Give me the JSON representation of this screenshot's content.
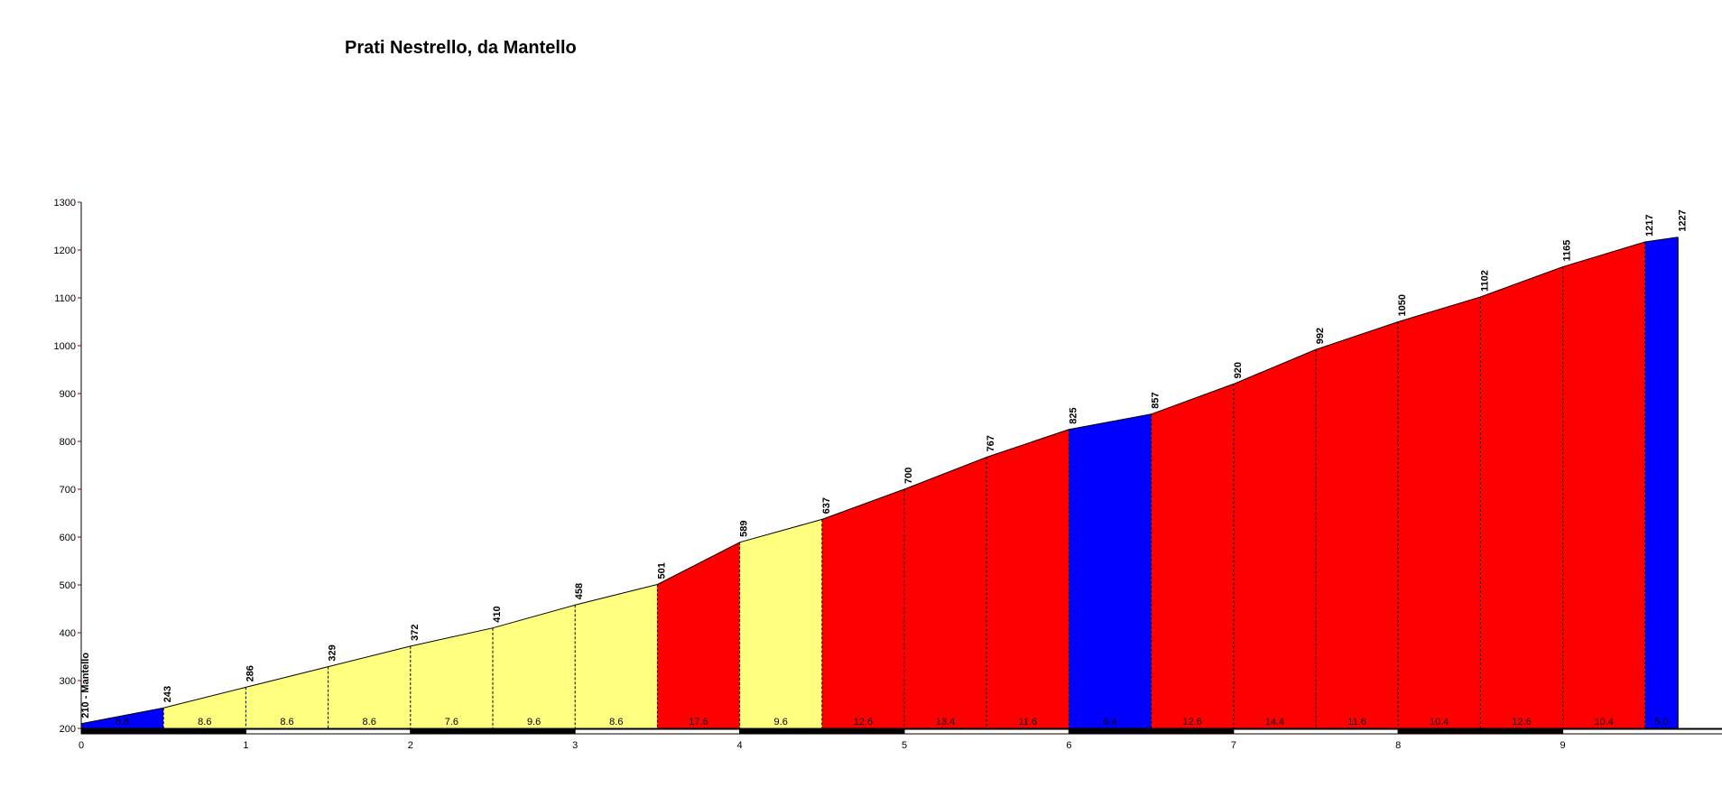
{
  "chart_data": {
    "type": "area",
    "title": "Prati Nestrello, da Mantello",
    "xlabel": "",
    "ylabel": "",
    "xlim": [
      0,
      10
    ],
    "ylim": [
      200,
      1300
    ],
    "x_ticks": [
      0,
      1,
      2,
      3,
      4,
      5,
      6,
      7,
      8,
      9
    ],
    "y_ticks": [
      200,
      300,
      400,
      500,
      600,
      700,
      800,
      900,
      1000,
      1100,
      1200,
      1300
    ],
    "points": [
      {
        "x": 0.0,
        "y": 210,
        "label": "210 - Mantello"
      },
      {
        "x": 0.5,
        "y": 243,
        "label": "243"
      },
      {
        "x": 1.0,
        "y": 286,
        "label": "286"
      },
      {
        "x": 1.5,
        "y": 329,
        "label": "329"
      },
      {
        "x": 2.0,
        "y": 372,
        "label": "372"
      },
      {
        "x": 2.5,
        "y": 410,
        "label": "410"
      },
      {
        "x": 3.0,
        "y": 458,
        "label": "458"
      },
      {
        "x": 3.5,
        "y": 501,
        "label": "501"
      },
      {
        "x": 4.0,
        "y": 589,
        "label": "589"
      },
      {
        "x": 4.5,
        "y": 637,
        "label": "637"
      },
      {
        "x": 5.0,
        "y": 700,
        "label": "700"
      },
      {
        "x": 5.5,
        "y": 767,
        "label": "767"
      },
      {
        "x": 6.0,
        "y": 825,
        "label": "825"
      },
      {
        "x": 6.5,
        "y": 857,
        "label": "857"
      },
      {
        "x": 7.0,
        "y": 920,
        "label": "920"
      },
      {
        "x": 7.5,
        "y": 992,
        "label": "992"
      },
      {
        "x": 8.0,
        "y": 1050,
        "label": "1050"
      },
      {
        "x": 8.5,
        "y": 1102,
        "label": "1102"
      },
      {
        "x": 9.0,
        "y": 1165,
        "label": "1165"
      },
      {
        "x": 9.5,
        "y": 1217,
        "label": "1217"
      },
      {
        "x": 9.7,
        "y": 1227,
        "label": "1227"
      }
    ],
    "segments": [
      {
        "gradient": "6.6",
        "color": "#0000ff"
      },
      {
        "gradient": "8.6",
        "color": "#ffff80"
      },
      {
        "gradient": "8.6",
        "color": "#ffff80"
      },
      {
        "gradient": "8.6",
        "color": "#ffff80"
      },
      {
        "gradient": "7.6",
        "color": "#ffff80"
      },
      {
        "gradient": "9.6",
        "color": "#ffff80"
      },
      {
        "gradient": "8.6",
        "color": "#ffff80"
      },
      {
        "gradient": "17.6",
        "color": "#ff0000"
      },
      {
        "gradient": "9.6",
        "color": "#ffff80"
      },
      {
        "gradient": "12.6",
        "color": "#ff0000"
      },
      {
        "gradient": "13.4",
        "color": "#ff0000"
      },
      {
        "gradient": "11.6",
        "color": "#ff0000"
      },
      {
        "gradient": "6.4",
        "color": "#0000ff"
      },
      {
        "gradient": "12.6",
        "color": "#ff0000"
      },
      {
        "gradient": "14.4",
        "color": "#ff0000"
      },
      {
        "gradient": "11.6",
        "color": "#ff0000"
      },
      {
        "gradient": "10.4",
        "color": "#ff0000"
      },
      {
        "gradient": "12.6",
        "color": "#ff0000"
      },
      {
        "gradient": "10.4",
        "color": "#ff0000"
      },
      {
        "gradient": "5.0",
        "color": "#0000ff"
      }
    ],
    "colors": {
      "axis_tick_marks": "#8b0000",
      "outline": "#000000",
      "baseline_dark": "#000000",
      "baseline_light": "#ffffff"
    },
    "grid": false,
    "legend": "none"
  }
}
